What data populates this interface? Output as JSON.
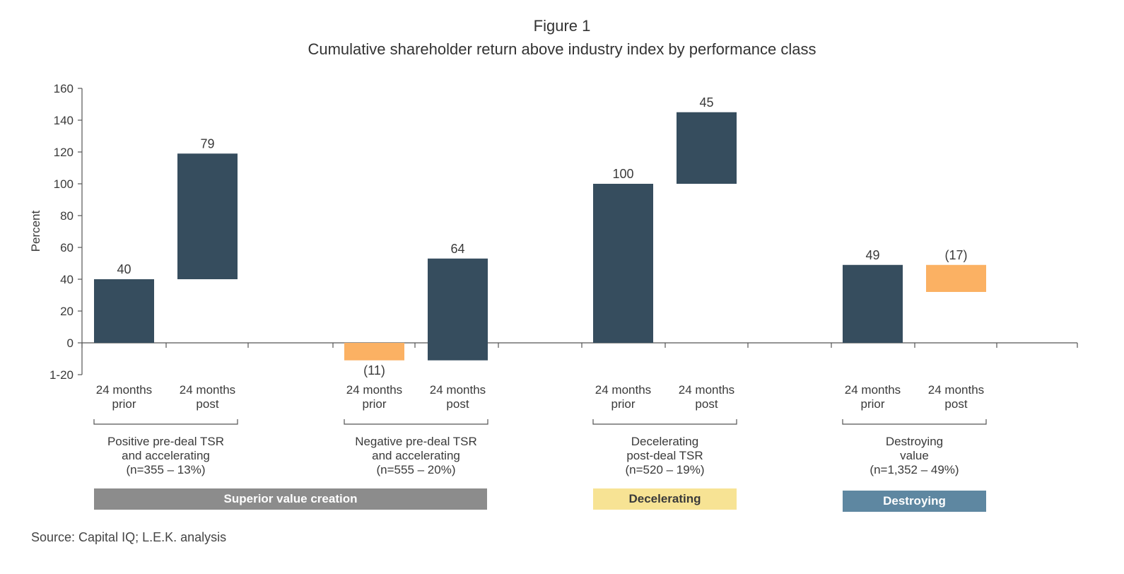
{
  "figure_label": "Figure 1",
  "title": "Cumulative shareholder return above industry index by performance class",
  "source": "Source: Capital IQ; L.E.K. analysis",
  "colors": {
    "positive": "#364d5e",
    "negative": "#fbb163",
    "axis": "#555555"
  },
  "chart_data": {
    "type": "bar",
    "subtype": "waterfall",
    "ylabel": "Percent",
    "ylim": [
      -20,
      160
    ],
    "yticks": [
      {
        "value": 160,
        "label": "160"
      },
      {
        "value": 140,
        "label": "140"
      },
      {
        "value": 120,
        "label": "120"
      },
      {
        "value": 100,
        "label": "100"
      },
      {
        "value": 80,
        "label": "80"
      },
      {
        "value": 60,
        "label": "60"
      },
      {
        "value": 40,
        "label": "40"
      },
      {
        "value": 20,
        "label": "20"
      },
      {
        "value": 0,
        "label": "0"
      },
      {
        "value": -20,
        "label": "1-20"
      }
    ],
    "groups": [
      {
        "name": [
          "Positive pre-deal TSR",
          "and accelerating",
          "(n=355 – 13%)"
        ],
        "bars": [
          {
            "category": [
              "24 months",
              "prior"
            ],
            "start": 0,
            "end": 40,
            "label": "40",
            "kind": "positive"
          },
          {
            "category": [
              "24 months",
              "post"
            ],
            "start": 40,
            "end": 119,
            "label": "79",
            "kind": "positive"
          }
        ]
      },
      {
        "name": [
          "Negative pre-deal TSR",
          "and accelerating",
          "(n=555 – 20%)"
        ],
        "bars": [
          {
            "category": [
              "24 months",
              "prior"
            ],
            "start": 0,
            "end": -11,
            "label": "(11)",
            "kind": "negative"
          },
          {
            "category": [
              "24 months",
              "post"
            ],
            "start": -11,
            "end": 53,
            "label": "64",
            "kind": "positive"
          }
        ]
      },
      {
        "name": [
          "Decelerating",
          "post-deal TSR",
          "(n=520 – 19%)"
        ],
        "bars": [
          {
            "category": [
              "24 months",
              "prior"
            ],
            "start": 0,
            "end": 100,
            "label": "100",
            "kind": "positive"
          },
          {
            "category": [
              "24 months",
              "post"
            ],
            "start": 100,
            "end": 145,
            "label": "45",
            "kind": "positive"
          }
        ]
      },
      {
        "name": [
          "Destroying",
          "value",
          "(n=1,352 – 49%)"
        ],
        "bars": [
          {
            "category": [
              "24 months",
              "prior"
            ],
            "start": 0,
            "end": 49,
            "label": "49",
            "kind": "positive"
          },
          {
            "category": [
              "24 months",
              "post"
            ],
            "start": 49,
            "end": 32,
            "label": "(17)",
            "kind": "negative"
          }
        ]
      }
    ],
    "classes": [
      {
        "label": "Superior value creation",
        "color": "#8c8c8c"
      },
      {
        "label": "Decelerating",
        "color": "#f7e394"
      },
      {
        "label": "Destroying",
        "color": "#5e87a1"
      }
    ],
    "grid": false,
    "legend": "none"
  }
}
